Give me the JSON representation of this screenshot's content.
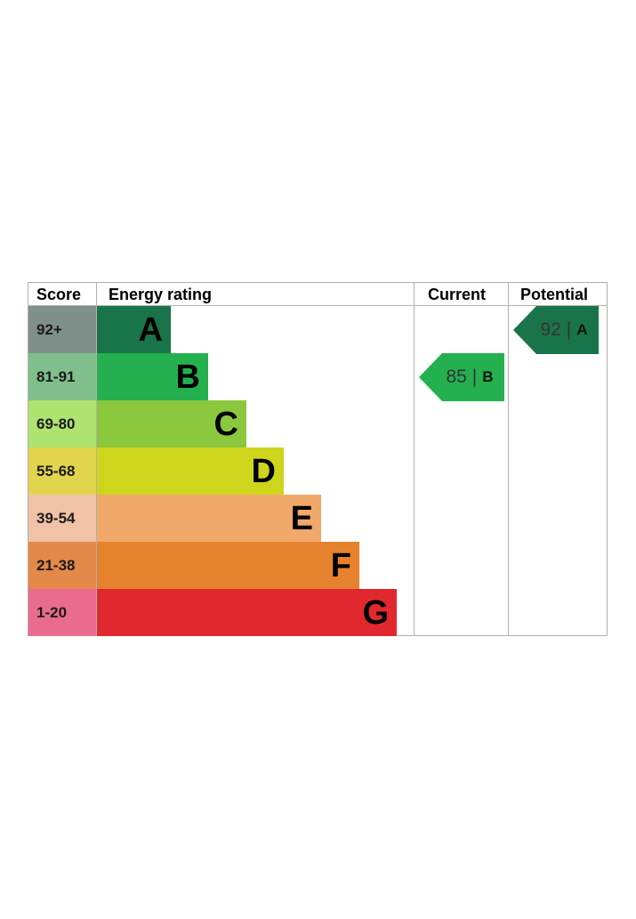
{
  "chart_data": {
    "type": "bar",
    "title": "",
    "headers": {
      "score": "Score",
      "energy_rating": "Energy rating",
      "current": "Current",
      "potential": "Potential"
    },
    "bands": [
      {
        "score": "92+",
        "letter": "A",
        "color": "#1a7449",
        "score_bg": "#7f8f8a"
      },
      {
        "score": "81-91",
        "letter": "B",
        "color": "#24b04f",
        "score_bg": "#7fbf8c"
      },
      {
        "score": "69-80",
        "letter": "C",
        "color": "#8bc83e",
        "score_bg": "#aee36f"
      },
      {
        "score": "55-68",
        "letter": "D",
        "color": "#ced51d",
        "score_bg": "#e2d54e"
      },
      {
        "score": "39-54",
        "letter": "E",
        "color": "#f0a86b",
        "score_bg": "#f0c2a6"
      },
      {
        "score": "21-38",
        "letter": "F",
        "color": "#e6822e",
        "score_bg": "#e3894a"
      },
      {
        "score": "1-20",
        "letter": "G",
        "color": "#e2282f",
        "score_bg": "#ea6b90"
      }
    ],
    "current": {
      "value": 85,
      "letter": "B",
      "sep": "|",
      "color": "#24b04f"
    },
    "potential": {
      "value": 92,
      "letter": "A",
      "sep": "|",
      "color": "#1a7449"
    }
  }
}
